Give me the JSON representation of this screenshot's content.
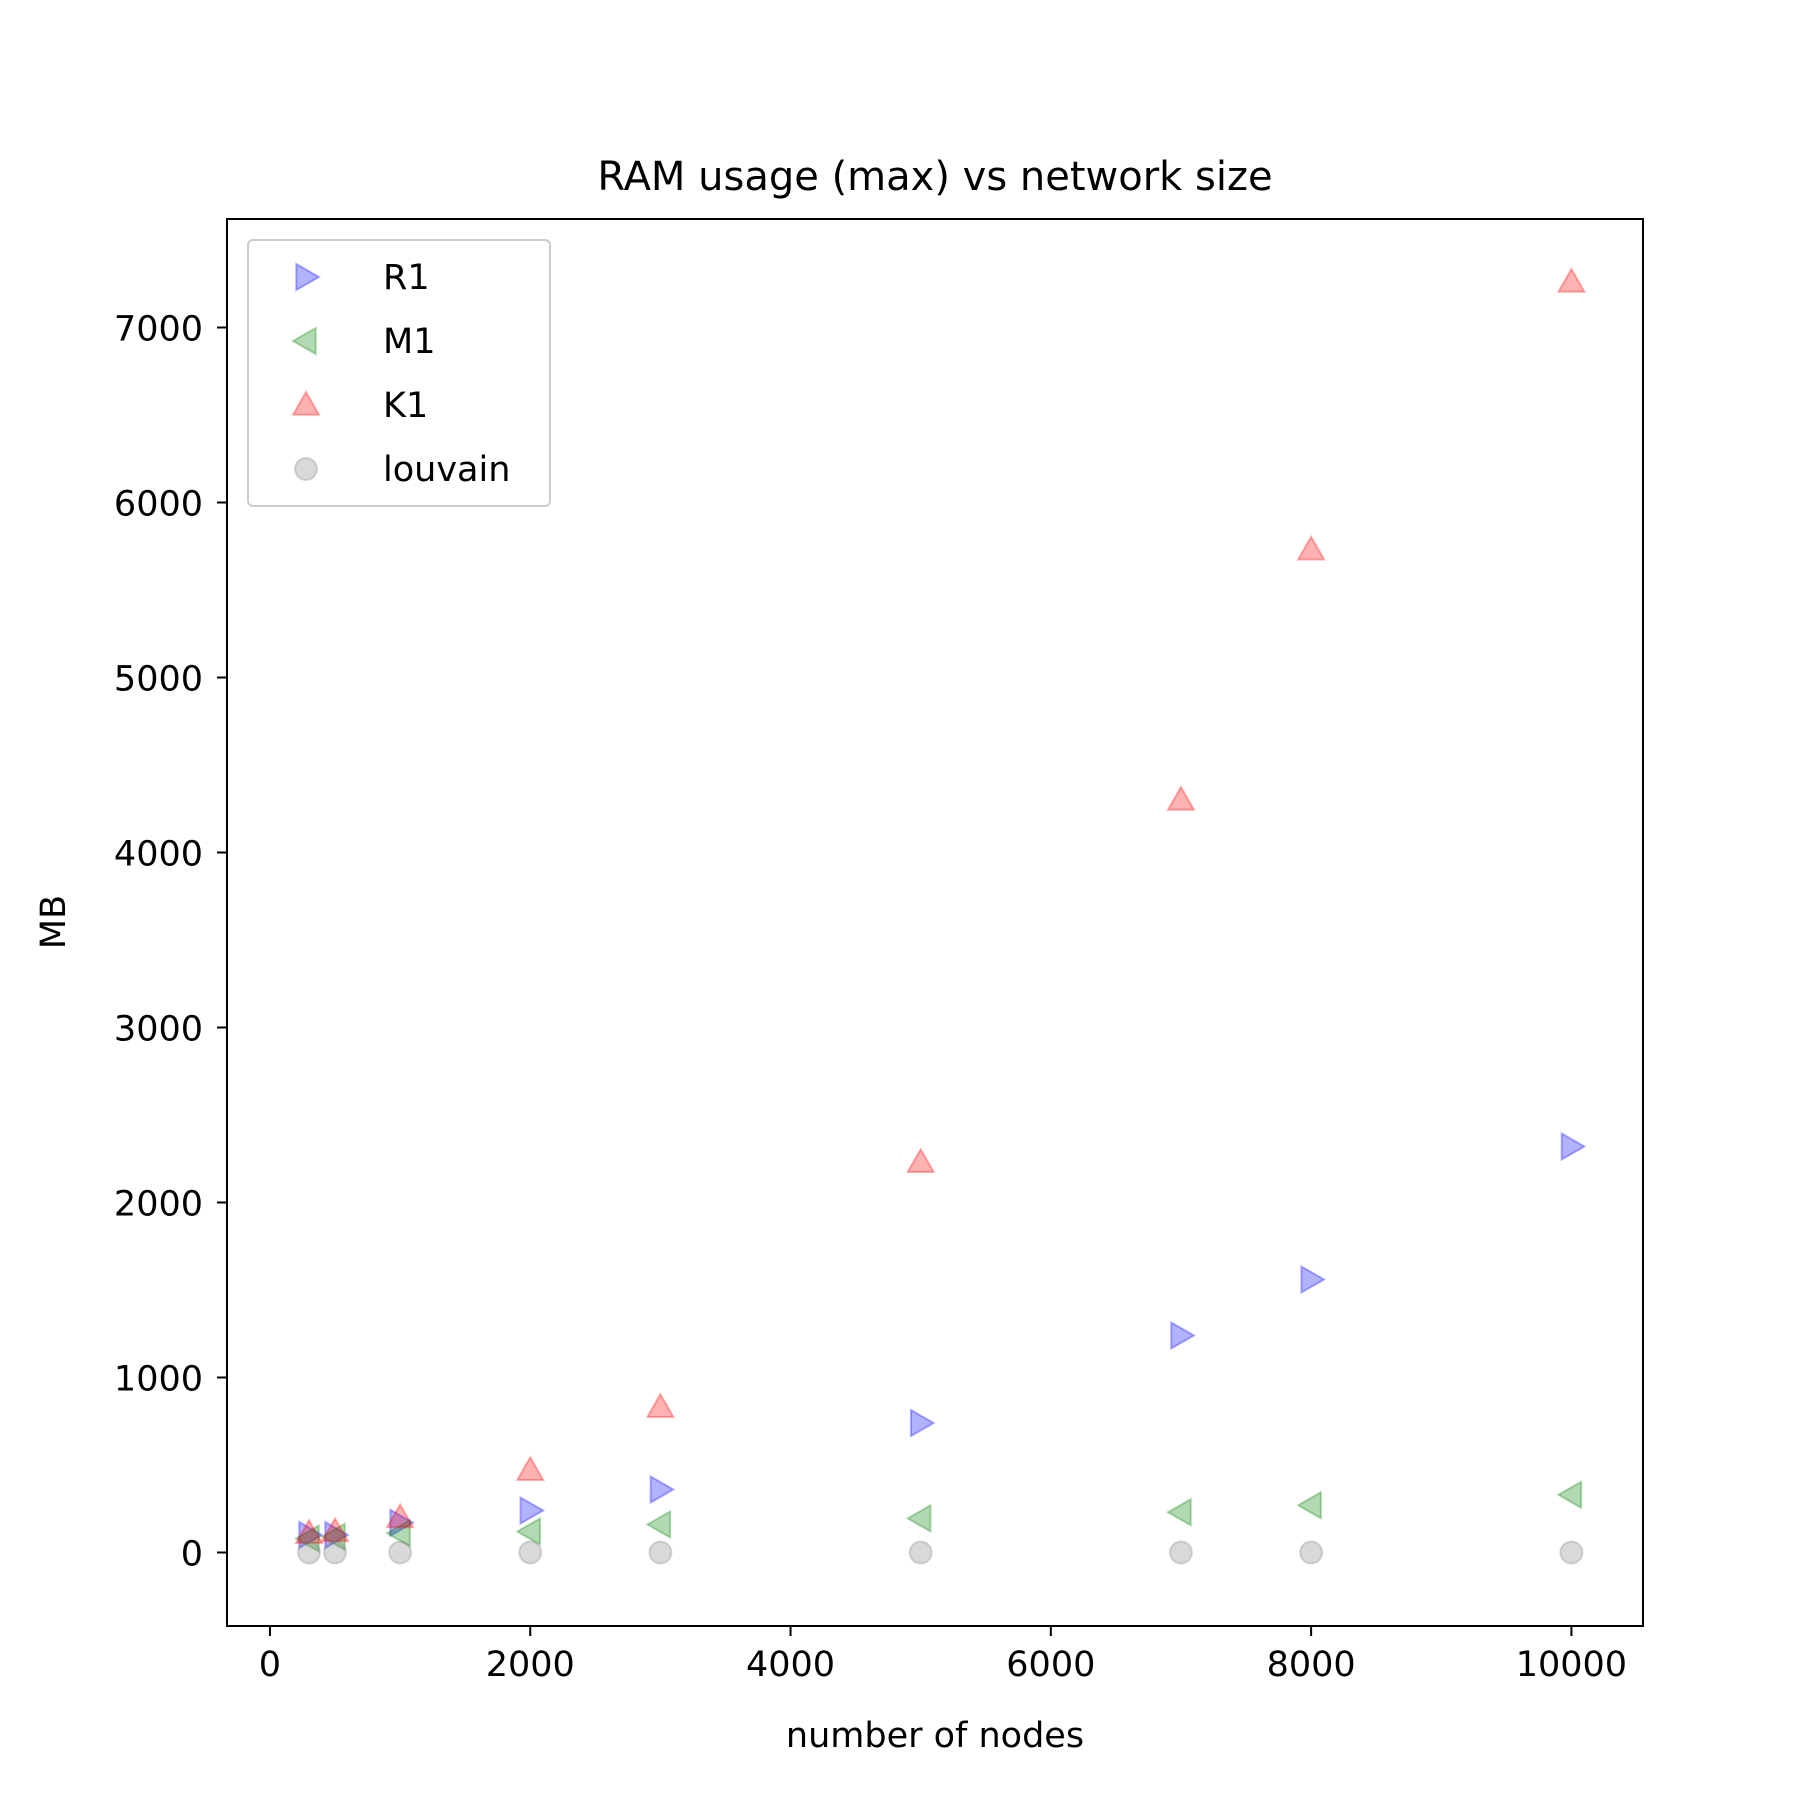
{
  "chart_data": {
    "type": "scatter",
    "title": "RAM usage (max) vs network size",
    "xlabel": "number of nodes",
    "ylabel": "MB",
    "xlim": [
      -330,
      10550
    ],
    "ylim": [
      -420,
      7620
    ],
    "xticks": [
      0,
      2000,
      4000,
      6000,
      8000,
      10000
    ],
    "yticks": [
      0,
      1000,
      2000,
      3000,
      4000,
      5000,
      6000,
      7000
    ],
    "grid": false,
    "legend_position": "upper left",
    "series": [
      {
        "name": "R1",
        "marker": "triangle-right",
        "color": "#0000ff",
        "x": [
          300,
          500,
          1000,
          2000,
          3000,
          5000,
          7000,
          8000,
          10000
        ],
        "y": [
          100,
          100,
          170,
          240,
          360,
          740,
          1240,
          1560,
          2320
        ]
      },
      {
        "name": "M1",
        "marker": "triangle-left",
        "color": "#008000",
        "x": [
          300,
          500,
          1000,
          2000,
          3000,
          5000,
          7000,
          8000,
          10000
        ],
        "y": [
          80,
          90,
          110,
          120,
          160,
          195,
          230,
          270,
          330
        ]
      },
      {
        "name": "K1",
        "marker": "triangle-up",
        "color": "#ff0000",
        "x": [
          300,
          500,
          1000,
          2000,
          3000,
          5000,
          7000,
          8000,
          10000
        ],
        "y": [
          110,
          120,
          200,
          470,
          830,
          2230,
          4300,
          5730,
          7260
        ]
      },
      {
        "name": "louvain",
        "marker": "circle",
        "color": "#808080",
        "x": [
          300,
          500,
          1000,
          2000,
          3000,
          5000,
          7000,
          8000,
          10000
        ],
        "y": [
          0,
          0,
          0,
          0,
          0,
          0,
          0,
          0,
          0
        ]
      }
    ]
  }
}
